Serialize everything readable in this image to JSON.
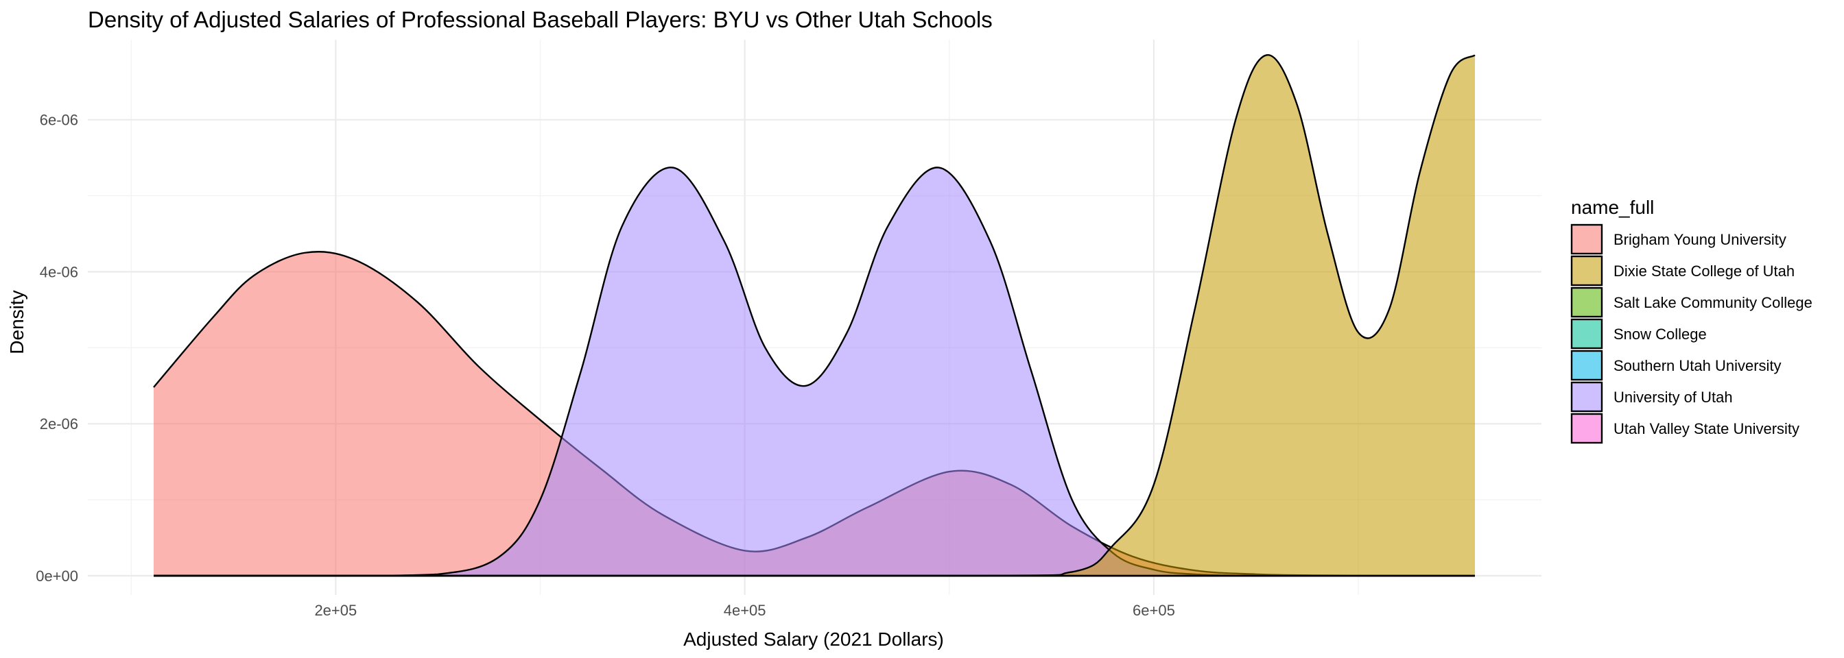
{
  "chart_data": {
    "type": "area",
    "title": "Density of Adjusted Salaries of Professional Baseball Players: BYU vs Other Utah Schools",
    "xlabel": "Adjusted Salary (2021 Dollars)",
    "ylabel": "Density",
    "xlim": [
      111000,
      757000
    ],
    "ylim": [
      0,
      6.8e-06
    ],
    "x_ticks": [
      200000,
      400000,
      600000
    ],
    "x_tick_labels": [
      "2e+05",
      "4e+05",
      "6e+05"
    ],
    "y_ticks": [
      0,
      2e-06,
      4e-06,
      6e-06
    ],
    "y_tick_labels": [
      "0e+00",
      "2e-06",
      "4e-06",
      "6e-06"
    ],
    "grid": true,
    "legend": {
      "title": "name_full",
      "position": "right",
      "entries": [
        {
          "label": "Brigham Young University",
          "color": "#F8766D"
        },
        {
          "label": "Dixie State College of Utah",
          "color": "#C49A00"
        },
        {
          "label": "Salt Lake Community College",
          "color": "#53B400"
        },
        {
          "label": "Snow College",
          "color": "#00C094"
        },
        {
          "label": "Southern Utah University",
          "color": "#00B6EB"
        },
        {
          "label": "University of Utah",
          "color": "#A58AFF"
        },
        {
          "label": "Utah Valley State University",
          "color": "#FB61D7"
        }
      ]
    },
    "series": [
      {
        "name": "Brigham Young University",
        "color": "#F8766D",
        "x": [
          111000,
          140000,
          160000,
          185000,
          210000,
          240000,
          270000,
          300000,
          330000,
          360000,
          400000,
          430000,
          460000,
          500000,
          530000,
          560000,
          590000,
          620000,
          650000,
          680000,
          720000,
          757000
        ],
        "y": [
          2.48e-06,
          3.4e-06,
          3.95e-06,
          4.25e-06,
          4.15e-06,
          3.6e-06,
          2.75e-06,
          2.05e-06,
          1.4e-06,
          8e-07,
          3.3e-07,
          5e-07,
          9e-07,
          1.37e-06,
          1.2e-06,
          6.5e-07,
          2.5e-07,
          7e-08,
          2e-08,
          5e-09,
          0.0,
          0.0
        ]
      },
      {
        "name": "University of Utah",
        "color": "#A58AFF",
        "x": [
          111000,
          200000,
          250000,
          280000,
          300000,
          320000,
          340000,
          365000,
          390000,
          410000,
          430000,
          450000,
          470000,
          495000,
          520000,
          540000,
          560000,
          580000,
          600000,
          620000,
          650000,
          700000,
          757000
        ],
        "y": [
          0.0,
          0.0,
          2e-08,
          2.5e-07,
          1e-06,
          2.7e-06,
          4.6e-06,
          5.37e-06,
          4.4e-06,
          3e-06,
          2.5e-06,
          3.2e-06,
          4.6e-06,
          5.37e-06,
          4.4e-06,
          2.7e-06,
          1e-06,
          3e-07,
          8e-08,
          2e-08,
          0.0,
          0.0,
          0.0
        ]
      },
      {
        "name": "Dixie State College of Utah",
        "color": "#C49A00",
        "x": [
          111000,
          500000,
          560000,
          580000,
          600000,
          620000,
          640000,
          655000,
          670000,
          685000,
          700000,
          715000,
          730000,
          745000,
          757000
        ],
        "y": [
          0.0,
          0.0,
          5e-08,
          4e-07,
          1.2e-06,
          3.5e-06,
          6e-06,
          6.85e-06,
          6.2e-06,
          4.5e-06,
          3.2e-06,
          3.5e-06,
          5.3e-06,
          6.6e-06,
          6.85e-06
        ]
      }
    ]
  }
}
